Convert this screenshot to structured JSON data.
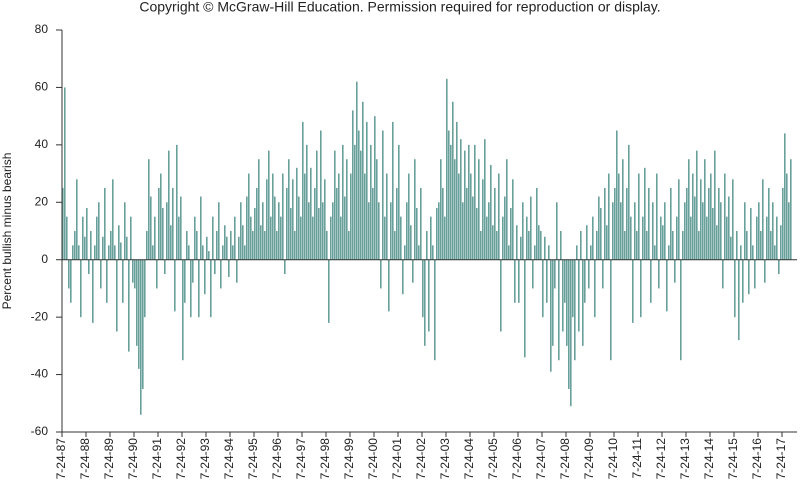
{
  "chart_data": {
    "type": "bar",
    "title": "Copyright © McGraw-Hill Education. Permission required for reproduction or display.",
    "y_label": "Percent bullish minus bearish",
    "color": "#4f8f8a",
    "ylim": [
      -60,
      80
    ],
    "yticks": [
      -60,
      -40,
      -20,
      0,
      20,
      40,
      60,
      80
    ],
    "categories": [
      "7-24-87",
      null,
      null,
      null,
      null,
      null,
      null,
      null,
      null,
      null,
      null,
      null,
      "7-24-88",
      null,
      null,
      null,
      null,
      null,
      null,
      null,
      null,
      null,
      null,
      null,
      "7-24-89",
      null,
      null,
      null,
      null,
      null,
      null,
      null,
      null,
      null,
      null,
      null,
      "7-24-90",
      null,
      null,
      null,
      null,
      null,
      null,
      null,
      null,
      null,
      null,
      null,
      "7-24-91",
      null,
      null,
      null,
      null,
      null,
      null,
      null,
      null,
      null,
      null,
      null,
      "7-24-92",
      null,
      null,
      null,
      null,
      null,
      null,
      null,
      null,
      null,
      null,
      null,
      "7-24-93",
      null,
      null,
      null,
      null,
      null,
      null,
      null,
      null,
      null,
      null,
      null,
      "7-24-94",
      null,
      null,
      null,
      null,
      null,
      null,
      null,
      null,
      null,
      null,
      null,
      "7-24-95",
      null,
      null,
      null,
      null,
      null,
      null,
      null,
      null,
      null,
      null,
      null,
      "7-24-96",
      null,
      null,
      null,
      null,
      null,
      null,
      null,
      null,
      null,
      null,
      null,
      "7-24-97",
      null,
      null,
      null,
      null,
      null,
      null,
      null,
      null,
      null,
      null,
      null,
      "7-24-98",
      null,
      null,
      null,
      null,
      null,
      null,
      null,
      null,
      null,
      null,
      null,
      "7-24-99",
      null,
      null,
      null,
      null,
      null,
      null,
      null,
      null,
      null,
      null,
      null,
      "7-24-00",
      null,
      null,
      null,
      null,
      null,
      null,
      null,
      null,
      null,
      null,
      null,
      "7-24-01",
      null,
      null,
      null,
      null,
      null,
      null,
      null,
      null,
      null,
      null,
      null,
      "7-24-02",
      null,
      null,
      null,
      null,
      null,
      null,
      null,
      null,
      null,
      null,
      null,
      "7-24-03",
      null,
      null,
      null,
      null,
      null,
      null,
      null,
      null,
      null,
      null,
      null,
      "7-24-04",
      null,
      null,
      null,
      null,
      null,
      null,
      null,
      null,
      null,
      null,
      null,
      "7-24-05",
      null,
      null,
      null,
      null,
      null,
      null,
      null,
      null,
      null,
      null,
      null,
      "7-24-06",
      null,
      null,
      null,
      null,
      null,
      null,
      null,
      null,
      null,
      null,
      null,
      "7-24-07",
      null,
      null,
      null,
      null,
      null,
      null,
      null,
      null,
      null,
      null,
      null,
      "7-24-08",
      null,
      null,
      null,
      null,
      null,
      null,
      null,
      null,
      null,
      null,
      null,
      "7-24-09",
      null,
      null,
      null,
      null,
      null,
      null,
      null,
      null,
      null,
      null,
      null,
      "7-24-10",
      null,
      null,
      null,
      null,
      null,
      null,
      null,
      null,
      null,
      null,
      null,
      "7-24-11",
      null,
      null,
      null,
      null,
      null,
      null,
      null,
      null,
      null,
      null,
      null,
      "7-24-12",
      null,
      null,
      null,
      null,
      null,
      null,
      null,
      null,
      null,
      null,
      null,
      "7-24-13",
      null,
      null,
      null,
      null,
      null,
      null,
      null,
      null,
      null,
      null,
      null,
      "7-24-14",
      null,
      null,
      null,
      null,
      null,
      null,
      null,
      null,
      null,
      null,
      null,
      "7-24-15",
      null,
      null,
      null,
      null,
      null,
      null,
      null,
      null,
      null,
      null,
      null,
      "7-24-16",
      null,
      null,
      null,
      null,
      null,
      null,
      null,
      null,
      null,
      null,
      null,
      "7-24-17",
      null,
      null,
      null,
      null
    ],
    "values": [
      25,
      60,
      15,
      -10,
      -15,
      5,
      10,
      28,
      5,
      -20,
      15,
      8,
      18,
      -5,
      10,
      -22,
      5,
      15,
      20,
      -10,
      8,
      25,
      -15,
      5,
      10,
      28,
      5,
      -25,
      12,
      6,
      -15,
      20,
      8,
      -32,
      15,
      -8,
      -10,
      -30,
      -38,
      -54,
      -45,
      -20,
      10,
      35,
      22,
      5,
      15,
      -10,
      25,
      30,
      18,
      -5,
      20,
      38,
      12,
      25,
      -18,
      40,
      15,
      22,
      -35,
      -15,
      10,
      5,
      -20,
      -8,
      15,
      10,
      -20,
      22,
      5,
      -12,
      8,
      3,
      -20,
      15,
      -5,
      10,
      20,
      -10,
      5,
      12,
      8,
      -6,
      10,
      5,
      15,
      -8,
      8,
      20,
      12,
      5,
      22,
      30,
      15,
      10,
      18,
      25,
      35,
      12,
      20,
      10,
      28,
      38,
      15,
      30,
      22,
      10,
      20,
      15,
      30,
      -5,
      25,
      35,
      18,
      28,
      10,
      32,
      22,
      15,
      48,
      30,
      40,
      20,
      32,
      15,
      25,
      38,
      18,
      45,
      20,
      28,
      10,
      -22,
      15,
      20,
      38,
      25,
      30,
      15,
      40,
      22,
      35,
      10,
      30,
      52,
      40,
      62,
      45,
      38,
      55,
      30,
      48,
      20,
      40,
      25,
      50,
      35,
      20,
      -10,
      45,
      15,
      30,
      -18,
      20,
      48,
      10,
      25,
      40,
      15,
      -12,
      5,
      20,
      30,
      12,
      -8,
      35,
      18,
      5,
      25,
      -20,
      -30,
      10,
      -25,
      15,
      5,
      -35,
      18,
      20,
      35,
      25,
      15,
      63,
      45,
      40,
      55,
      35,
      48,
      30,
      42,
      20,
      38,
      25,
      40,
      30,
      22,
      40,
      18,
      35,
      10,
      28,
      42,
      15,
      20,
      33,
      12,
      25,
      10,
      30,
      -25,
      15,
      22,
      35,
      5,
      18,
      28,
      -15,
      12,
      -15,
      8,
      20,
      -34,
      15,
      10,
      22,
      -10,
      5,
      25,
      12,
      10,
      -20,
      8,
      -15,
      5,
      -39,
      -30,
      -10,
      20,
      -35,
      10,
      -25,
      -15,
      -30,
      -45,
      -51,
      -20,
      -35,
      5,
      -25,
      10,
      -30,
      -15,
      12,
      -10,
      5,
      15,
      -20,
      10,
      22,
      18,
      -10,
      25,
      12,
      30,
      -35,
      20,
      25,
      45,
      30,
      20,
      35,
      10,
      25,
      40,
      15,
      -22,
      20,
      10,
      30,
      -20,
      15,
      32,
      10,
      25,
      -15,
      20,
      5,
      30,
      -10,
      15,
      12,
      20,
      -18,
      5,
      25,
      10,
      -8,
      15,
      28,
      -35,
      10,
      20,
      25,
      35,
      15,
      30,
      22,
      38,
      10,
      28,
      20,
      35,
      15,
      25,
      30,
      18,
      38,
      12,
      25,
      20,
      -10,
      30,
      15,
      22,
      8,
      28,
      -20,
      10,
      -28,
      5,
      -15,
      20,
      10,
      -12,
      18,
      5,
      -10,
      15,
      20,
      10,
      28,
      -8,
      15,
      25,
      10,
      20,
      5,
      15,
      -5,
      12,
      25,
      44,
      30,
      20,
      35
    ]
  }
}
